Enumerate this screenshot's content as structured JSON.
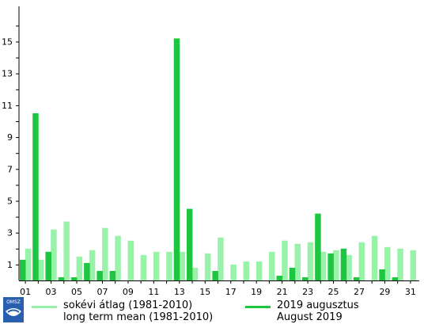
{
  "chart_data": {
    "type": "bar",
    "categories": [
      "01",
      "02",
      "03",
      "04",
      "05",
      "06",
      "07",
      "08",
      "09",
      "10",
      "11",
      "12",
      "13",
      "14",
      "15",
      "16",
      "17",
      "18",
      "19",
      "20",
      "21",
      "22",
      "23",
      "24",
      "25",
      "26",
      "27",
      "28",
      "29",
      "30",
      "31"
    ],
    "x_tick_labels": [
      "01",
      "03",
      "05",
      "07",
      "09",
      "11",
      "13",
      "15",
      "17",
      "19",
      "21",
      "23",
      "25",
      "27",
      "29",
      "31"
    ],
    "y_tick_labels": [
      1,
      3,
      5,
      7,
      9,
      11,
      13,
      15
    ],
    "ylim": [
      0,
      17
    ],
    "grid": false,
    "legend_position": "bottom",
    "series": [
      {
        "name": "sokévi átlag (1981-2010)",
        "name_en": "long term mean (1981-2010)",
        "color": "#99f2aa",
        "values": [
          2.0,
          1.3,
          3.2,
          3.7,
          1.5,
          1.9,
          3.3,
          2.8,
          2.5,
          1.6,
          1.8,
          1.8,
          1.8,
          0.8,
          1.7,
          2.7,
          1.0,
          1.2,
          1.2,
          1.8,
          2.5,
          2.3,
          2.4,
          1.8,
          1.9,
          1.6,
          2.4,
          2.8,
          2.1,
          2.0,
          1.9
        ]
      },
      {
        "name": "2019 augusztus",
        "name_en": "August 2019",
        "color": "#1ec640",
        "values": [
          1.3,
          10.5,
          1.8,
          0.2,
          0.2,
          1.1,
          0.6,
          0.6,
          0.0,
          0.0,
          0.0,
          0.0,
          15.2,
          4.5,
          0.0,
          0.6,
          0.0,
          0.0,
          0.0,
          0.0,
          0.3,
          0.8,
          0.2,
          4.2,
          1.7,
          2.0,
          0.2,
          0.0,
          0.7,
          0.2,
          0.0
        ]
      }
    ]
  },
  "logo": {
    "text": "OMSZ"
  }
}
